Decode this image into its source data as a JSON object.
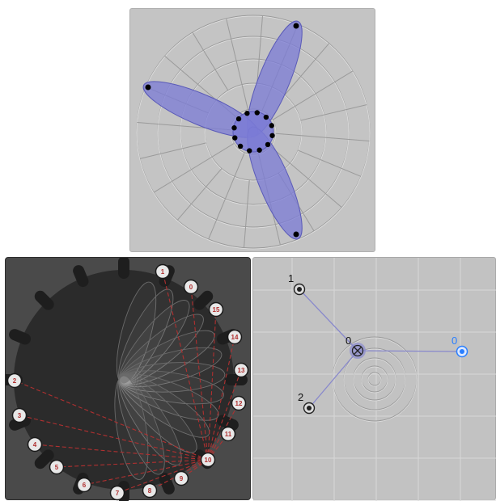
{
  "top": {
    "colors": {
      "background": "#c4c4c4",
      "petal": "#7b7bd6",
      "grid": "#9a9a9a",
      "dot": "#000000"
    }
  },
  "left": {
    "nodes": [
      {
        "label": "1"
      },
      {
        "label": "0"
      },
      {
        "label": "15"
      },
      {
        "label": "14"
      },
      {
        "label": "13"
      },
      {
        "label": "12"
      },
      {
        "label": "11"
      },
      {
        "label": "10"
      },
      {
        "label": "9"
      },
      {
        "label": "8"
      },
      {
        "label": "7"
      },
      {
        "label": "6"
      },
      {
        "label": "5"
      },
      {
        "label": "4"
      },
      {
        "label": "3"
      },
      {
        "label": "2"
      }
    ],
    "colors": {
      "background": "#4a4a4a",
      "disk": "#2b2b2b",
      "dash": "#b03030"
    }
  },
  "right": {
    "points": [
      {
        "label": "0",
        "kind": "origin"
      },
      {
        "label": "1",
        "kind": "handle"
      },
      {
        "label": "2",
        "kind": "handle"
      },
      {
        "label": "0",
        "kind": "target"
      }
    ],
    "colors": {
      "background": "#c2c2c2",
      "target": "#2a7fff",
      "line": "#8888cc"
    }
  }
}
